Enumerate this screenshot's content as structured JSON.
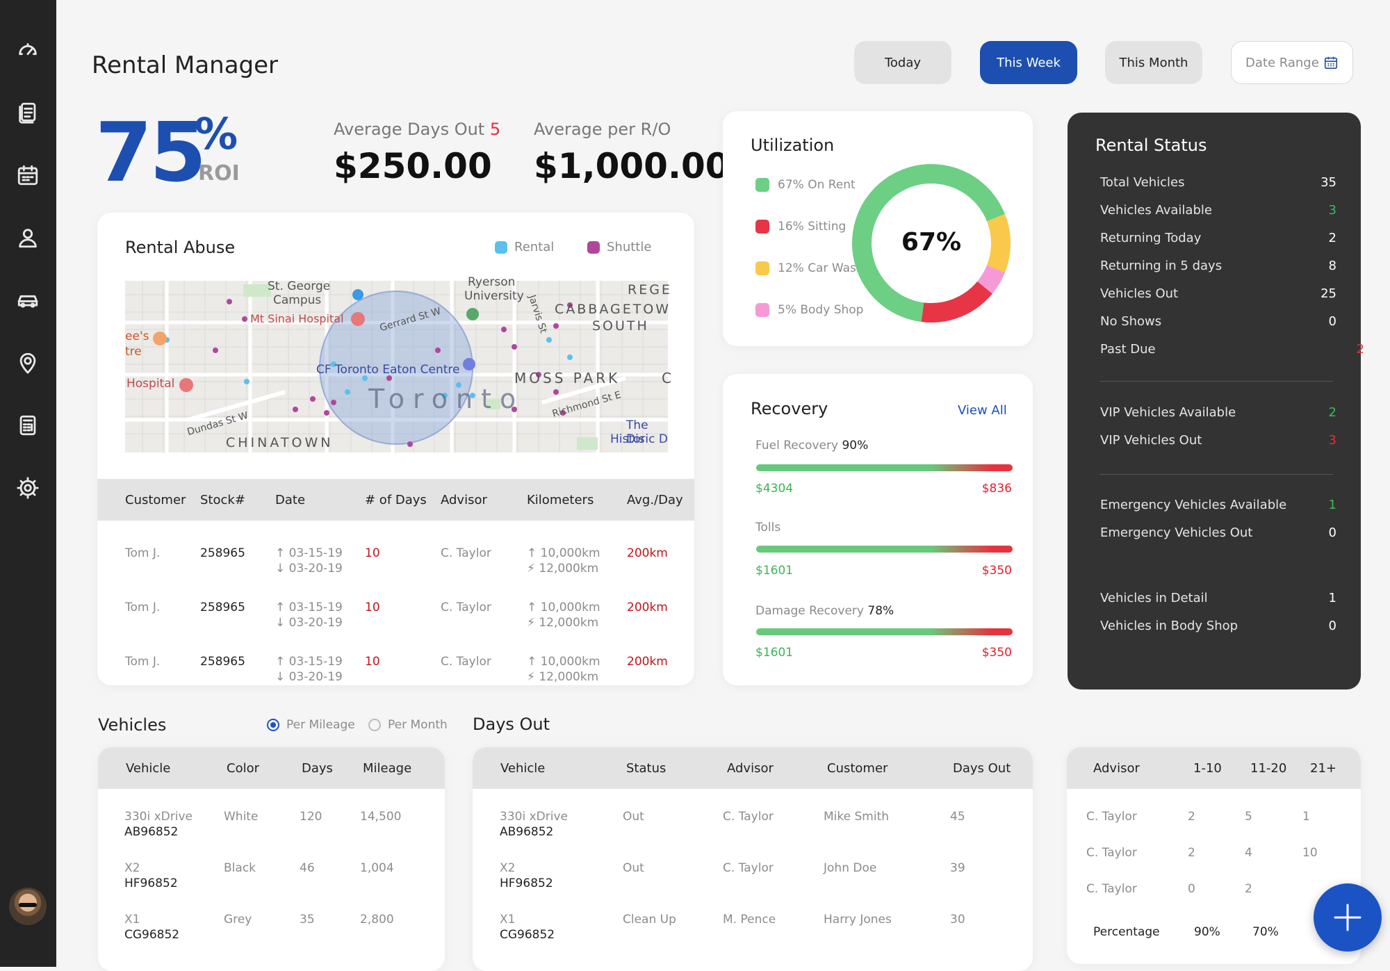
{
  "header": {
    "title": "Rental Manager",
    "filters": [
      "Today",
      "This Week",
      "This Month"
    ],
    "active_filter": "This Week",
    "date_range_label": "Date Range"
  },
  "roi": {
    "value": "75",
    "percent_sign": "%",
    "label": "ROI"
  },
  "avg_days": {
    "label": "Average Days Out",
    "count": "5",
    "value": "$250.00"
  },
  "avg_ro": {
    "label": "Average per R/O",
    "value": "$1,000.00"
  },
  "rental_abuse": {
    "title": "Rental Abuse",
    "legend": [
      {
        "label": "Rental",
        "color": "#5bc0eb"
      },
      {
        "label": "Shuttle",
        "color": "#b0479b"
      }
    ],
    "map_labels": {
      "st_george": "St. George",
      "campus": "Campus",
      "sinai": "Mt Sinai Hospital",
      "ryerson": "Ryerson",
      "university": "University",
      "rege": "REGE",
      "cabbagetown": "CABBAGETOW",
      "south": "SOUTH",
      "gerrard": "Gerrard St W",
      "jarvis": "Jarvis St",
      "ees": "ee's",
      "tre": "tre",
      "hospital": "Hospital",
      "eaton": "CF Toronto Eaton Centre",
      "moss": "MOSS PARK",
      "toronto": "Toronto",
      "dundas": "Dundas St W",
      "richmond": "Richmond St E",
      "chinatown": "CHINATOWN",
      "distillery1": "The Dis",
      "distillery2": "Historic D",
      "c": "C"
    },
    "columns": [
      "Customer",
      "Stock#",
      "Date",
      "# of Days",
      "Advisor",
      "Kilometers",
      "Avg./Day"
    ],
    "rows": [
      {
        "customer": "Tom J.",
        "stock": "258965",
        "date_out": "03-15-19",
        "date_in": "03-20-19",
        "days": "10",
        "advisor": "C. Taylor",
        "km_start": "10,000km",
        "km_end": "12,000km",
        "avg": "200km"
      },
      {
        "customer": "Tom J.",
        "stock": "258965",
        "date_out": "03-15-19",
        "date_in": "03-20-19",
        "days": "10",
        "advisor": "C. Taylor",
        "km_start": "10,000km",
        "km_end": "12,000km",
        "avg": "200km"
      },
      {
        "customer": "Tom J.",
        "stock": "258965",
        "date_out": "03-15-19",
        "date_in": "03-20-19",
        "days": "10",
        "advisor": "C. Taylor",
        "km_start": "10,000km",
        "km_end": "12,000km",
        "avg": "200km"
      }
    ]
  },
  "utilization": {
    "title": "Utilization",
    "center_label": "67%",
    "legend": [
      {
        "label": "67% On Rent",
        "color": "#6ccf84"
      },
      {
        "label": "16% Sitting",
        "color": "#e83546"
      },
      {
        "label": "12% Car Wash",
        "color": "#fac94b"
      },
      {
        "label": "5% Body Shop",
        "color": "#f59ad6"
      }
    ],
    "chart_data": {
      "type": "pie",
      "categories": [
        "On Rent",
        "Sitting",
        "Car Wash",
        "Body Shop"
      ],
      "values": [
        67,
        16,
        12,
        5
      ],
      "colors": [
        "#6ccf84",
        "#e83546",
        "#fac94b",
        "#f59ad6"
      ]
    }
  },
  "recovery": {
    "title": "Recovery",
    "view_all": "View All",
    "items": [
      {
        "label": "Fuel Recovery",
        "pct": "90%",
        "low": "$4304",
        "high": "$836"
      },
      {
        "label": "Tolls",
        "pct": "",
        "low": "$1601",
        "high": "$350"
      },
      {
        "label": "Damage Recovery",
        "pct": "78%",
        "low": "$1601",
        "high": "$350"
      }
    ]
  },
  "rental_status": {
    "title": "Rental Status",
    "group1": [
      {
        "label": "Total Vehicles",
        "value": "35",
        "color": "#ffffff"
      },
      {
        "label": "Vehicles Available",
        "value": "3",
        "color": "#3dbb5a"
      },
      {
        "label": "Returning Today",
        "value": "2",
        "color": "#ffffff"
      },
      {
        "label": "Returning in 5 days",
        "value": "8",
        "color": "#ffffff"
      },
      {
        "label": "Vehicles Out",
        "value": "25",
        "color": "#ffffff"
      },
      {
        "label": "No Shows",
        "value": "0",
        "color": "#ffffff"
      },
      {
        "label": "Past Due",
        "value": "2",
        "color": "#e0313d"
      }
    ],
    "group2": [
      {
        "label": "VIP Vehicles Available",
        "value": "2",
        "color": "#3dbb5a"
      },
      {
        "label": "VIP Vehicles Out",
        "value": "3",
        "color": "#e0313d"
      }
    ],
    "group3": [
      {
        "label": "Emergency Vehicles Available",
        "value": "1",
        "color": "#3dbb5a"
      },
      {
        "label": "Emergency Vehicles Out",
        "value": "0",
        "color": "#ffffff"
      }
    ],
    "group4": [
      {
        "label": "Vehicles in Detail",
        "value": "1",
        "color": "#ffffff"
      },
      {
        "label": "Vehicles in Body Shop",
        "value": "0",
        "color": "#ffffff"
      }
    ]
  },
  "vehicles": {
    "title": "Vehicles",
    "radio_mileage": "Per Mileage",
    "radio_month": "Per Month",
    "columns": [
      "Vehicle",
      "Color",
      "Days",
      "Mileage"
    ],
    "rows": [
      {
        "model": "330i xDrive",
        "plate": "AB96852",
        "color": "White",
        "days": "120",
        "mileage": "14,500"
      },
      {
        "model": "X2",
        "plate": "HF96852",
        "color": "Black",
        "days": "46",
        "mileage": "1,004"
      },
      {
        "model": "X1",
        "plate": "CG96852",
        "color": "Grey",
        "days": "35",
        "mileage": "2,800"
      }
    ]
  },
  "days_out": {
    "title": "Days Out",
    "columns": [
      "Vehicle",
      "Status",
      "Advisor",
      "Customer",
      "Days Out"
    ],
    "rows": [
      {
        "model": "330i xDrive",
        "plate": "AB96852",
        "status": "Out",
        "advisor": "C. Taylor",
        "customer": "Mike Smith",
        "days": "45"
      },
      {
        "model": "X2",
        "plate": "HF96852",
        "status": "Out",
        "advisor": "C. Taylor",
        "customer": "John Doe",
        "days": "39"
      },
      {
        "model": "X1",
        "plate": "CG96852",
        "status": "Clean Up",
        "advisor": "M. Pence",
        "customer": "Harry Jones",
        "days": "30"
      }
    ]
  },
  "advisor_table": {
    "columns": [
      "Advisor",
      "1-10",
      "11-20",
      "21+"
    ],
    "rows": [
      {
        "advisor": "C. Taylor",
        "a": "2",
        "b": "5",
        "c": "1"
      },
      {
        "advisor": "C. Taylor",
        "a": "2",
        "b": "4",
        "c": "10"
      },
      {
        "advisor": "C. Taylor",
        "a": "0",
        "b": "2",
        "c": ""
      }
    ],
    "footer": {
      "label": "Percentage",
      "a": "90%",
      "b": "70%"
    }
  }
}
